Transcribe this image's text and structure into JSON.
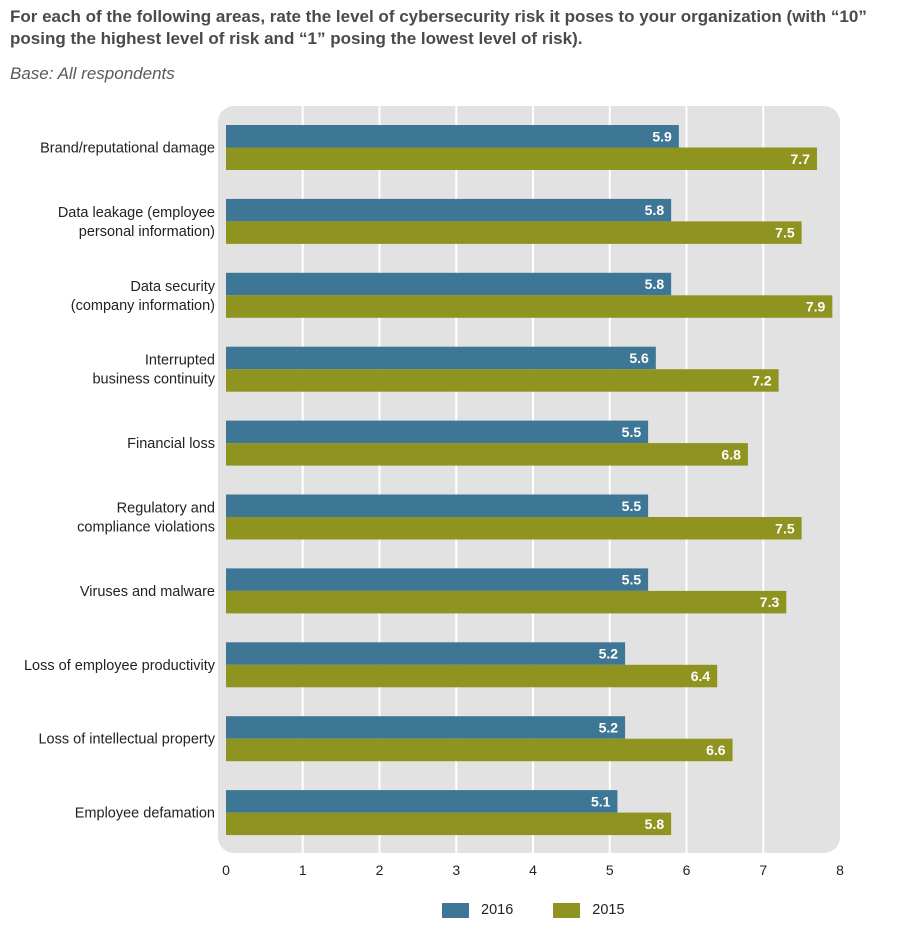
{
  "header": {
    "question": "For each of the following areas, rate the level of cybersecurity risk it poses to your organization (with “10” posing the highest level of risk and “1” posing the lowest level of risk).",
    "base": "Base: All respondents"
  },
  "colors": {
    "series_2016": "#3e7696",
    "series_2015": "#8f931f",
    "plot_bg": "#e2e2e2",
    "grid": "#ffffff"
  },
  "chart_data": {
    "type": "bar",
    "orientation": "horizontal",
    "categories": [
      [
        "Brand/reputational damage"
      ],
      [
        "Data leakage (employee",
        "personal information)"
      ],
      [
        "Data security",
        "(company information)"
      ],
      [
        "Interrupted",
        "business continuity"
      ],
      [
        "Financial loss"
      ],
      [
        "Regulatory and",
        "compliance violations"
      ],
      [
        "Viruses and malware"
      ],
      [
        "Loss of employee productivity"
      ],
      [
        "Loss of intellectual property"
      ],
      [
        "Employee defamation"
      ]
    ],
    "series": [
      {
        "name": "2016",
        "values": [
          5.9,
          5.8,
          5.8,
          5.6,
          5.5,
          5.5,
          5.5,
          5.2,
          5.2,
          5.1
        ]
      },
      {
        "name": "2015",
        "values": [
          7.7,
          7.5,
          7.9,
          7.2,
          6.8,
          7.5,
          7.3,
          6.4,
          6.6,
          5.8
        ]
      }
    ],
    "xlim": [
      0,
      8
    ],
    "xticks": [
      "0",
      "1",
      "2",
      "3",
      "4",
      "5",
      "6",
      "7",
      "8"
    ],
    "grid": true,
    "legend_position": "bottom"
  }
}
